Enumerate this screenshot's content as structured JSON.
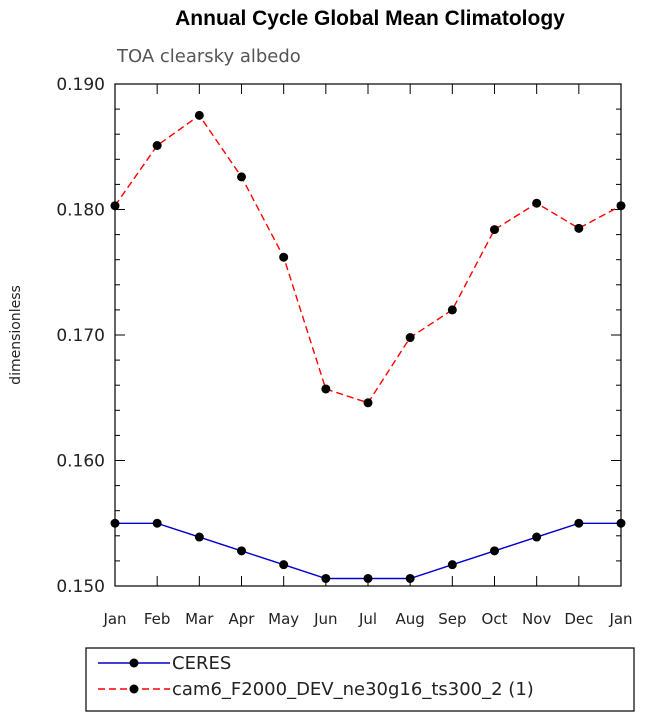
{
  "chart_data": {
    "type": "line",
    "title": "Annual Cycle Global Mean Climatology",
    "subtitle": "TOA clearsky albedo",
    "ylabel": "dimensionless",
    "xlabel": "",
    "categories": [
      "Jan",
      "Feb",
      "Mar",
      "Apr",
      "May",
      "Jun",
      "Jul",
      "Aug",
      "Sep",
      "Oct",
      "Nov",
      "Dec",
      "Jan"
    ],
    "ylim": [
      0.15,
      0.19
    ],
    "yticks": [
      "0.150",
      "0.160",
      "0.170",
      "0.180",
      "0.190"
    ],
    "grid": false,
    "legend_position": "bottom",
    "series": [
      {
        "name": "CERES",
        "color": "#0000cc",
        "dash": "solid",
        "values": [
          0.155,
          0.155,
          0.1539,
          0.1528,
          0.1517,
          0.1506,
          0.1506,
          0.1506,
          0.1517,
          0.1528,
          0.1539,
          0.155,
          0.155
        ]
      },
      {
        "name": "cam6_F2000_DEV_ne30g16_ts300_2 (1)",
        "color": "#ff0000",
        "dash": "dashed",
        "values": [
          0.1803,
          0.1851,
          0.1875,
          0.1826,
          0.1762,
          0.1657,
          0.1646,
          0.1698,
          0.172,
          0.1784,
          0.1805,
          0.1785,
          0.1803
        ]
      }
    ]
  }
}
